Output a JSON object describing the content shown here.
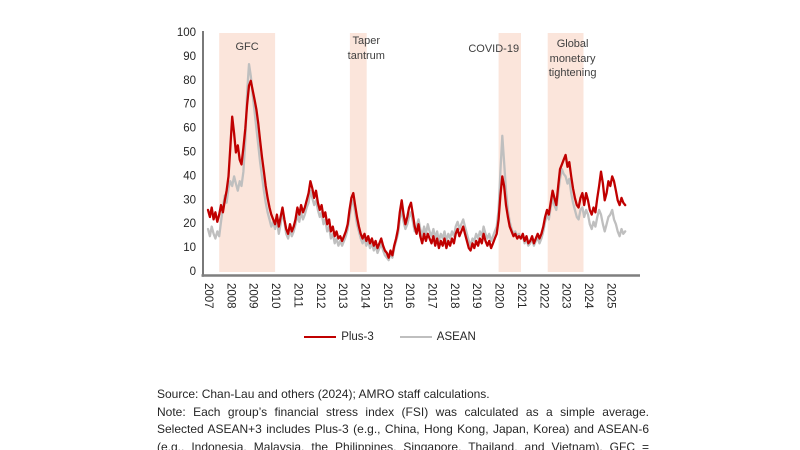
{
  "chart_data": {
    "type": "line",
    "title": "",
    "xlabel": "",
    "ylabel": "",
    "ylim": [
      0,
      100
    ],
    "yticks": [
      0,
      10,
      20,
      30,
      40,
      50,
      60,
      70,
      80,
      90,
      100
    ],
    "xticks": [
      2007,
      2008,
      2009,
      2010,
      2011,
      2012,
      2013,
      2014,
      2015,
      2016,
      2017,
      2018,
      2019,
      2020,
      2021,
      2022,
      2023,
      2024,
      2025
    ],
    "x_start": 2007,
    "points_per_year": 12,
    "grid": false,
    "legend_position": "bottom",
    "band_color": "#FBE5DB",
    "event_bands": [
      {
        "label": "GFC",
        "x0": 2007.5,
        "x1": 2010.0
      },
      {
        "label": "Taper tantrum",
        "x0": 2013.35,
        "x1": 2014.1
      },
      {
        "label": "COVID-19",
        "x0": 2020.0,
        "x1": 2021.0
      },
      {
        "label": "Global monetary tightening",
        "x0": 2022.2,
        "x1": 2023.8
      }
    ],
    "series": [
      {
        "name": "Plus-3",
        "color": "#C00000",
        "values": [
          26,
          23,
          27,
          22,
          25,
          21,
          24,
          28,
          25,
          30,
          34,
          40,
          52,
          65,
          58,
          50,
          53,
          47,
          45,
          52,
          60,
          70,
          78,
          80,
          76,
          72,
          68,
          62,
          55,
          48,
          42,
          36,
          31,
          27,
          24,
          22,
          20,
          24,
          19,
          23,
          27,
          22,
          18,
          16,
          20,
          17,
          19,
          22,
          27,
          24,
          28,
          25,
          27,
          30,
          33,
          38,
          35,
          31,
          34,
          29,
          26,
          28,
          23,
          25,
          20,
          22,
          17,
          19,
          15,
          17,
          14,
          15,
          13,
          15,
          17,
          20,
          26,
          31,
          33,
          28,
          23,
          19,
          16,
          14,
          16,
          13,
          15,
          12,
          14,
          11,
          13,
          10,
          12,
          14,
          11,
          9,
          8,
          6,
          9,
          7,
          11,
          14,
          18,
          25,
          30,
          24,
          20,
          23,
          27,
          29,
          24,
          19,
          16,
          20,
          15,
          12,
          16,
          13,
          16,
          14,
          12,
          15,
          11,
          14,
          10,
          13,
          11,
          14,
          10,
          13,
          11,
          14,
          12,
          16,
          18,
          15,
          17,
          19,
          16,
          13,
          10,
          9,
          12,
          10,
          13,
          11,
          14,
          12,
          16,
          13,
          11,
          13,
          10,
          12,
          14,
          16,
          22,
          32,
          40,
          36,
          28,
          23,
          19,
          17,
          15,
          16,
          14,
          15,
          14,
          16,
          13,
          15,
          12,
          13,
          15,
          12,
          14,
          16,
          14,
          16,
          19,
          23,
          26,
          24,
          29,
          34,
          31,
          28,
          36,
          43,
          45,
          47,
          49,
          44,
          46,
          40,
          35,
          31,
          28,
          27,
          31,
          33,
          28,
          33,
          30,
          26,
          24,
          27,
          25,
          31,
          36,
          42,
          37,
          30,
          33,
          38,
          36,
          40,
          38,
          34,
          30,
          28,
          31,
          29,
          28
        ]
      },
      {
        "name": "ASEAN",
        "color": "#BFBFBF",
        "values": [
          18,
          15,
          19,
          16,
          14,
          17,
          15,
          21,
          27,
          32,
          29,
          35,
          38,
          36,
          40,
          37,
          34,
          38,
          36,
          42,
          55,
          75,
          87,
          82,
          74,
          67,
          60,
          53,
          46,
          40,
          34,
          29,
          25,
          22,
          19,
          21,
          18,
          22,
          16,
          20,
          25,
          21,
          16,
          14,
          18,
          15,
          17,
          20,
          24,
          21,
          25,
          22,
          24,
          27,
          29,
          34,
          31,
          28,
          30,
          26,
          23,
          25,
          20,
          22,
          17,
          19,
          14,
          16,
          12,
          14,
          11,
          13,
          11,
          13,
          15,
          18,
          23,
          28,
          30,
          25,
          20,
          17,
          14,
          12,
          14,
          11,
          13,
          10,
          12,
          9,
          11,
          8,
          10,
          12,
          9,
          7,
          6,
          5,
          8,
          6,
          10,
          13,
          16,
          22,
          26,
          21,
          18,
          20,
          23,
          25,
          21,
          17,
          19,
          22,
          18,
          15,
          19,
          16,
          20,
          17,
          15,
          18,
          14,
          17,
          13,
          16,
          14,
          17,
          13,
          16,
          14,
          17,
          15,
          19,
          21,
          18,
          20,
          22,
          19,
          16,
          13,
          11,
          14,
          13,
          16,
          14,
          17,
          15,
          19,
          16,
          14,
          16,
          13,
          15,
          17,
          19,
          26,
          42,
          57,
          46,
          34,
          26,
          21,
          18,
          16,
          17,
          15,
          16,
          14,
          15,
          12,
          14,
          11,
          12,
          14,
          11,
          13,
          14,
          12,
          14,
          17,
          21,
          24,
          22,
          27,
          31,
          28,
          26,
          33,
          39,
          43,
          41,
          40,
          37,
          39,
          33,
          29,
          26,
          23,
          22,
          26,
          27,
          23,
          26,
          24,
          20,
          18,
          21,
          19,
          23,
          26,
          24,
          20,
          17,
          20,
          23,
          24,
          26,
          22,
          20,
          17,
          15,
          18,
          16,
          17
        ]
      }
    ]
  },
  "footnote": {
    "source": "Source: Chan-Lau and others (2024); AMRO staff calculations.",
    "note_lines": [
      "Note: Each group’s financial stress index (FSI) was calculated as a simple average.",
      "Selected ASEAN+3 includes Plus-3 (e.g., China, Hong Kong, Japan, Korea) and ASEAN-6",
      "(e.g., Indonesia, Malaysia, the Philippines, Singapore, Thailand, and Vietnam). GFC ="
    ]
  }
}
